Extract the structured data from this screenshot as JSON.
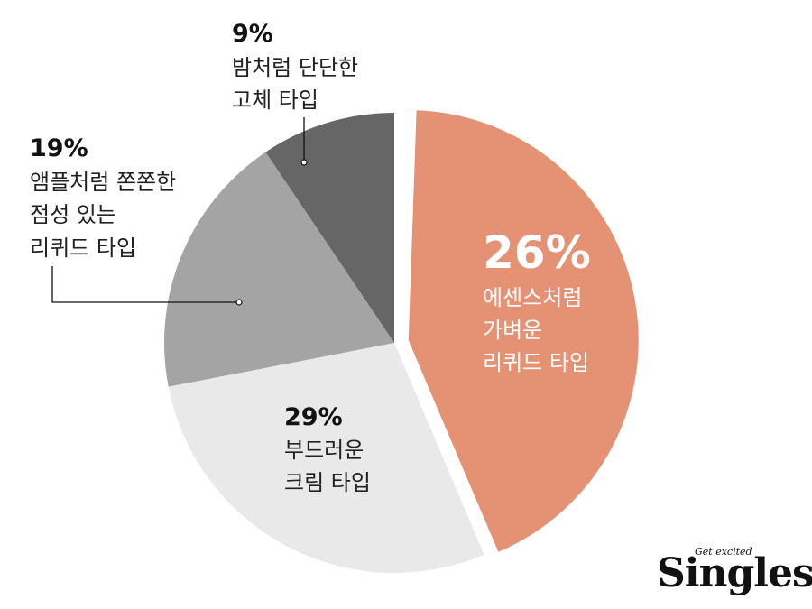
{
  "chart_data": {
    "type": "pie",
    "slices": [
      {
        "value": 26,
        "percent_label": "26%",
        "lines": [
          "에센스처럼",
          "가벼운",
          "리퀴드 타입"
        ],
        "color": "#e59274",
        "exploded": true
      },
      {
        "value": 29,
        "percent_label": "29%",
        "lines": [
          "부드러운",
          "크림 타입"
        ],
        "color": "#e8e9e8",
        "exploded": false
      },
      {
        "value": 19,
        "percent_label": "19%",
        "lines": [
          "앰플처럼 쫀쫀한",
          "점성 있는",
          "리퀴드 타입"
        ],
        "color": "#a3a4a3",
        "exploded": false
      },
      {
        "value": 9,
        "percent_label": "9%",
        "lines": [
          "밤처럼 단단한",
          "고체 타입"
        ],
        "color": "#666666",
        "exploded": false
      }
    ]
  },
  "logo": {
    "main": "Singles",
    "sub": "Get excited"
  }
}
